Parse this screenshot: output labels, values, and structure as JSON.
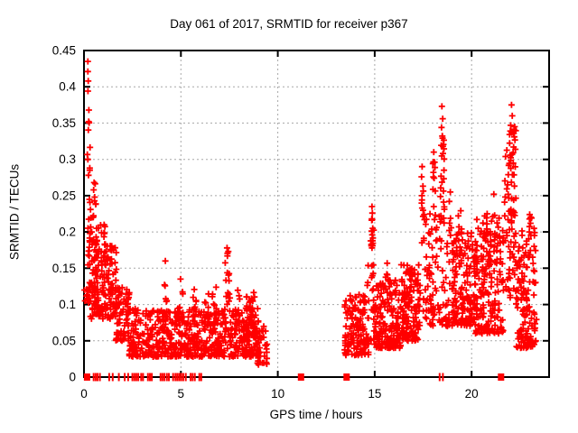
{
  "chart_data": {
    "type": "scatter",
    "title": "Day 061 of 2017, SRMTID for receiver p367",
    "xlabel": "GPS time / hours",
    "ylabel": "SRMTID / TECUs",
    "xlim": [
      0,
      24
    ],
    "ylim": [
      0,
      0.45
    ],
    "xticks": [
      {
        "v": 0,
        "label": "0"
      },
      {
        "v": 5,
        "label": "5"
      },
      {
        "v": 10,
        "label": "10"
      },
      {
        "v": 15,
        "label": "15"
      },
      {
        "v": 20,
        "label": "20"
      }
    ],
    "yticks": [
      {
        "v": 0,
        "label": "0"
      },
      {
        "v": 0.05,
        "label": "0.05"
      },
      {
        "v": 0.1,
        "label": "0.1"
      },
      {
        "v": 0.15,
        "label": "0.15"
      },
      {
        "v": 0.2,
        "label": "0.2"
      },
      {
        "v": 0.25,
        "label": "0.25"
      },
      {
        "v": 0.3,
        "label": "0.3"
      },
      {
        "v": 0.35,
        "label": "0.35"
      },
      {
        "v": 0.4,
        "label": "0.4"
      },
      {
        "v": 0.45,
        "label": "0.45"
      }
    ],
    "grid": "dotted",
    "legend": "none",
    "marker": "plus",
    "marker_color": "#ff0000",
    "grid_color": "#a8a8a8",
    "axis_color": "#000000",
    "background": "#ffffff",
    "seed": 61,
    "feature_points": [
      [
        0.2,
        0.435
      ],
      [
        0.2,
        0.421
      ],
      [
        0.22,
        0.408
      ],
      [
        0.205,
        0.394
      ],
      [
        0.25,
        0.368
      ],
      [
        0.24,
        0.352
      ],
      [
        0.2,
        0.3
      ],
      [
        0.3,
        0.285
      ],
      [
        0.52,
        0.268
      ],
      [
        0.5,
        0.258
      ],
      [
        0.55,
        0.248
      ],
      [
        0.6,
        0.238
      ],
      [
        0.45,
        0.22
      ],
      [
        0.65,
        0.205
      ],
      [
        1.04,
        0.21
      ],
      [
        1.06,
        0.198
      ],
      [
        0.03,
        0.12
      ],
      [
        0.05,
        0.105
      ],
      [
        4.2,
        0.16
      ],
      [
        7.38,
        0.178
      ],
      [
        7.4,
        0.167
      ],
      [
        14.86,
        0.235
      ],
      [
        14.88,
        0.226
      ],
      [
        14.85,
        0.218
      ],
      [
        14.9,
        0.205
      ],
      [
        14.87,
        0.196
      ],
      [
        14.89,
        0.188
      ],
      [
        14.86,
        0.178
      ],
      [
        17.45,
        0.29
      ],
      [
        17.42,
        0.276
      ],
      [
        17.49,
        0.263
      ],
      [
        17.44,
        0.25
      ],
      [
        18.05,
        0.31
      ],
      [
        18.09,
        0.296
      ],
      [
        18.03,
        0.282
      ],
      [
        18.47,
        0.373
      ],
      [
        18.51,
        0.356
      ],
      [
        18.45,
        0.344
      ],
      [
        18.49,
        0.332
      ],
      [
        18.52,
        0.318
      ],
      [
        18.9,
        0.255
      ],
      [
        18.85,
        0.242
      ],
      [
        21.15,
        0.252
      ],
      [
        22.06,
        0.375
      ],
      [
        22.1,
        0.36
      ],
      [
        22.02,
        0.347
      ],
      [
        23.0,
        0.224
      ],
      [
        23.04,
        0.212
      ],
      [
        22.98,
        0.2
      ]
    ],
    "clusters": [
      {
        "t": [
          0.13,
          0.32
        ],
        "v": [
          0.1,
          0.42
        ],
        "n": 22,
        "bias": 1.7
      },
      {
        "t": [
          0.3,
          0.62
        ],
        "v": [
          0.1,
          0.27
        ],
        "n": 20,
        "bias": 1.7
      },
      {
        "t": [
          0.55,
          0.95
        ],
        "v": [
          0.09,
          0.21
        ],
        "n": 30,
        "bias": 1.5
      },
      {
        "t": [
          0.2,
          1.7
        ],
        "v": [
          0.08,
          0.19
        ],
        "n": 150,
        "bias": 1.4
      },
      {
        "t": [
          1.0,
          1.12
        ],
        "v": [
          0.12,
          0.21
        ],
        "n": 10,
        "bias": 1.0
      },
      {
        "t": [
          1.6,
          2.35
        ],
        "v": [
          0.05,
          0.125
        ],
        "n": 75,
        "bias": 1.5
      },
      {
        "t": [
          2.3,
          9.0
        ],
        "v": [
          0.028,
          0.095
        ],
        "n": 620,
        "bias": 1.6
      },
      {
        "t": [
          4.1,
          4.3
        ],
        "v": [
          0.08,
          0.135
        ],
        "n": 9,
        "bias": 1.0
      },
      {
        "t": [
          4.85,
          5.1
        ],
        "v": [
          0.07,
          0.14
        ],
        "n": 11,
        "bias": 1.0
      },
      {
        "t": [
          5.6,
          5.85
        ],
        "v": [
          0.07,
          0.125
        ],
        "n": 10,
        "bias": 1.0
      },
      {
        "t": [
          6.2,
          6.45
        ],
        "v": [
          0.07,
          0.12
        ],
        "n": 9,
        "bias": 1.0
      },
      {
        "t": [
          6.6,
          6.85
        ],
        "v": [
          0.08,
          0.13
        ],
        "n": 9,
        "bias": 1.0
      },
      {
        "t": [
          7.25,
          7.55
        ],
        "v": [
          0.09,
          0.175
        ],
        "n": 14,
        "bias": 1.1
      },
      {
        "t": [
          7.8,
          8.05
        ],
        "v": [
          0.07,
          0.12
        ],
        "n": 9,
        "bias": 1.0
      },
      {
        "t": [
          8.35,
          8.8
        ],
        "v": [
          0.055,
          0.12
        ],
        "n": 45,
        "bias": 1.3
      },
      {
        "t": [
          8.95,
          9.45
        ],
        "v": [
          0.015,
          0.07
        ],
        "n": 32,
        "bias": 1.2
      },
      {
        "t": [
          13.45,
          14.7
        ],
        "v": [
          0.03,
          0.115
        ],
        "n": 130,
        "bias": 1.5
      },
      {
        "t": [
          14.35,
          14.55
        ],
        "v": [
          0.08,
          0.13
        ],
        "n": 7,
        "bias": 1.0
      },
      {
        "t": [
          14.78,
          14.98
        ],
        "v": [
          0.17,
          0.233
        ],
        "n": 10,
        "bias": 1.0
      },
      {
        "t": [
          14.6,
          15.05
        ],
        "v": [
          0.04,
          0.155
        ],
        "n": 24,
        "bias": 1.3
      },
      {
        "t": [
          15.0,
          16.35
        ],
        "v": [
          0.04,
          0.135
        ],
        "n": 170,
        "bias": 1.6
      },
      {
        "t": [
          15.55,
          15.72
        ],
        "v": [
          0.1,
          0.158
        ],
        "n": 7,
        "bias": 1.0
      },
      {
        "t": [
          16.35,
          17.35
        ],
        "v": [
          0.05,
          0.155
        ],
        "n": 140,
        "bias": 1.5
      },
      {
        "t": [
          17.38,
          17.58
        ],
        "v": [
          0.17,
          0.285
        ],
        "n": 9,
        "bias": 1.0
      },
      {
        "t": [
          17.5,
          19.0
        ],
        "v": [
          0.07,
          0.235
        ],
        "n": 110,
        "bias": 1.4
      },
      {
        "t": [
          18.38,
          18.6
        ],
        "v": [
          0.2,
          0.34
        ],
        "n": 20,
        "bias": 0.9
      },
      {
        "t": [
          18.0,
          18.14
        ],
        "v": [
          0.18,
          0.3
        ],
        "n": 8,
        "bias": 1.0
      },
      {
        "t": [
          19.0,
          20.2
        ],
        "v": [
          0.07,
          0.2
        ],
        "n": 160,
        "bias": 1.4
      },
      {
        "t": [
          19.3,
          19.52
        ],
        "v": [
          0.15,
          0.232
        ],
        "n": 7,
        "bias": 1.0
      },
      {
        "t": [
          20.2,
          21.65
        ],
        "v": [
          0.06,
          0.225
        ],
        "n": 190,
        "bias": 1.4
      },
      {
        "t": [
          20.8,
          21.12
        ],
        "v": [
          0.15,
          0.248
        ],
        "n": 9,
        "bias": 1.0
      },
      {
        "t": [
          21.7,
          22.32
        ],
        "v": [
          0.1,
          0.33
        ],
        "n": 60,
        "bias": 1.2
      },
      {
        "t": [
          21.95,
          22.28
        ],
        "v": [
          0.25,
          0.345
        ],
        "n": 22,
        "bias": 0.9
      },
      {
        "t": [
          22.3,
          23.35
        ],
        "v": [
          0.04,
          0.205
        ],
        "n": 130,
        "bias": 1.4
      },
      {
        "t": [
          22.95,
          23.12
        ],
        "v": [
          0.15,
          0.225
        ],
        "n": 7,
        "bias": 1.0
      }
    ],
    "zero_marks": {
      "thin": [
        0.5,
        0.6,
        0.7,
        0.82,
        1.3,
        1.48,
        1.8,
        2.1,
        2.28,
        2.5,
        2.6,
        2.7,
        2.8,
        2.95,
        3.05,
        3.3,
        3.4,
        3.5,
        3.95,
        4.05,
        4.15,
        4.28,
        4.38,
        4.6,
        4.72,
        4.82,
        4.92,
        5.02,
        5.12,
        5.25,
        5.5,
        5.6,
        5.72,
        5.95,
        6.05,
        18.35,
        18.52
      ],
      "wide": [
        0.16,
        11.2,
        13.55,
        21.52
      ]
    }
  }
}
